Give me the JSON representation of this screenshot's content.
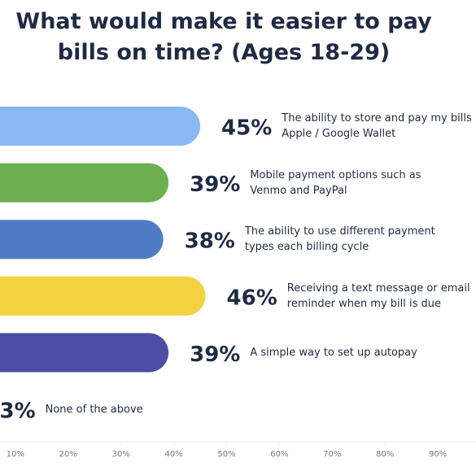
{
  "chart_data": {
    "type": "bar",
    "orientation": "horizontal",
    "title": "What would make it easier to pay bills on time? (Ages 18-29)",
    "categories": [
      "The ability to store and pay my bills in Apple / Google Wallet",
      "Mobile payment options such as Venmo and PayPal",
      "The ability to use different payment types each billing cycle",
      "Receiving a text message or email reminder when my bill is due",
      "A simple way to set up autopay",
      "None of the above"
    ],
    "values": [
      45,
      39,
      38,
      46,
      39,
      3
    ],
    "value_labels": [
      "45%",
      "39%",
      "38%",
      "46%",
      "39%",
      "3%"
    ],
    "colors": [
      "#8ab8f5",
      "#6cb052",
      "#4f7dc4",
      "#f4d13f",
      "#4b4ea3",
      "#1f2a44"
    ],
    "xlim": [
      0,
      100
    ],
    "xticks": [
      {
        "value": 10,
        "label": "10%"
      },
      {
        "value": 20,
        "label": "20%"
      },
      {
        "value": 30,
        "label": "30%"
      },
      {
        "value": 40,
        "label": "40%"
      },
      {
        "value": 50,
        "label": "50%"
      },
      {
        "value": 60,
        "label": "60%"
      },
      {
        "value": 70,
        "label": "70%"
      },
      {
        "value": 80,
        "label": "80%"
      },
      {
        "value": 90,
        "label": "90%"
      }
    ]
  }
}
